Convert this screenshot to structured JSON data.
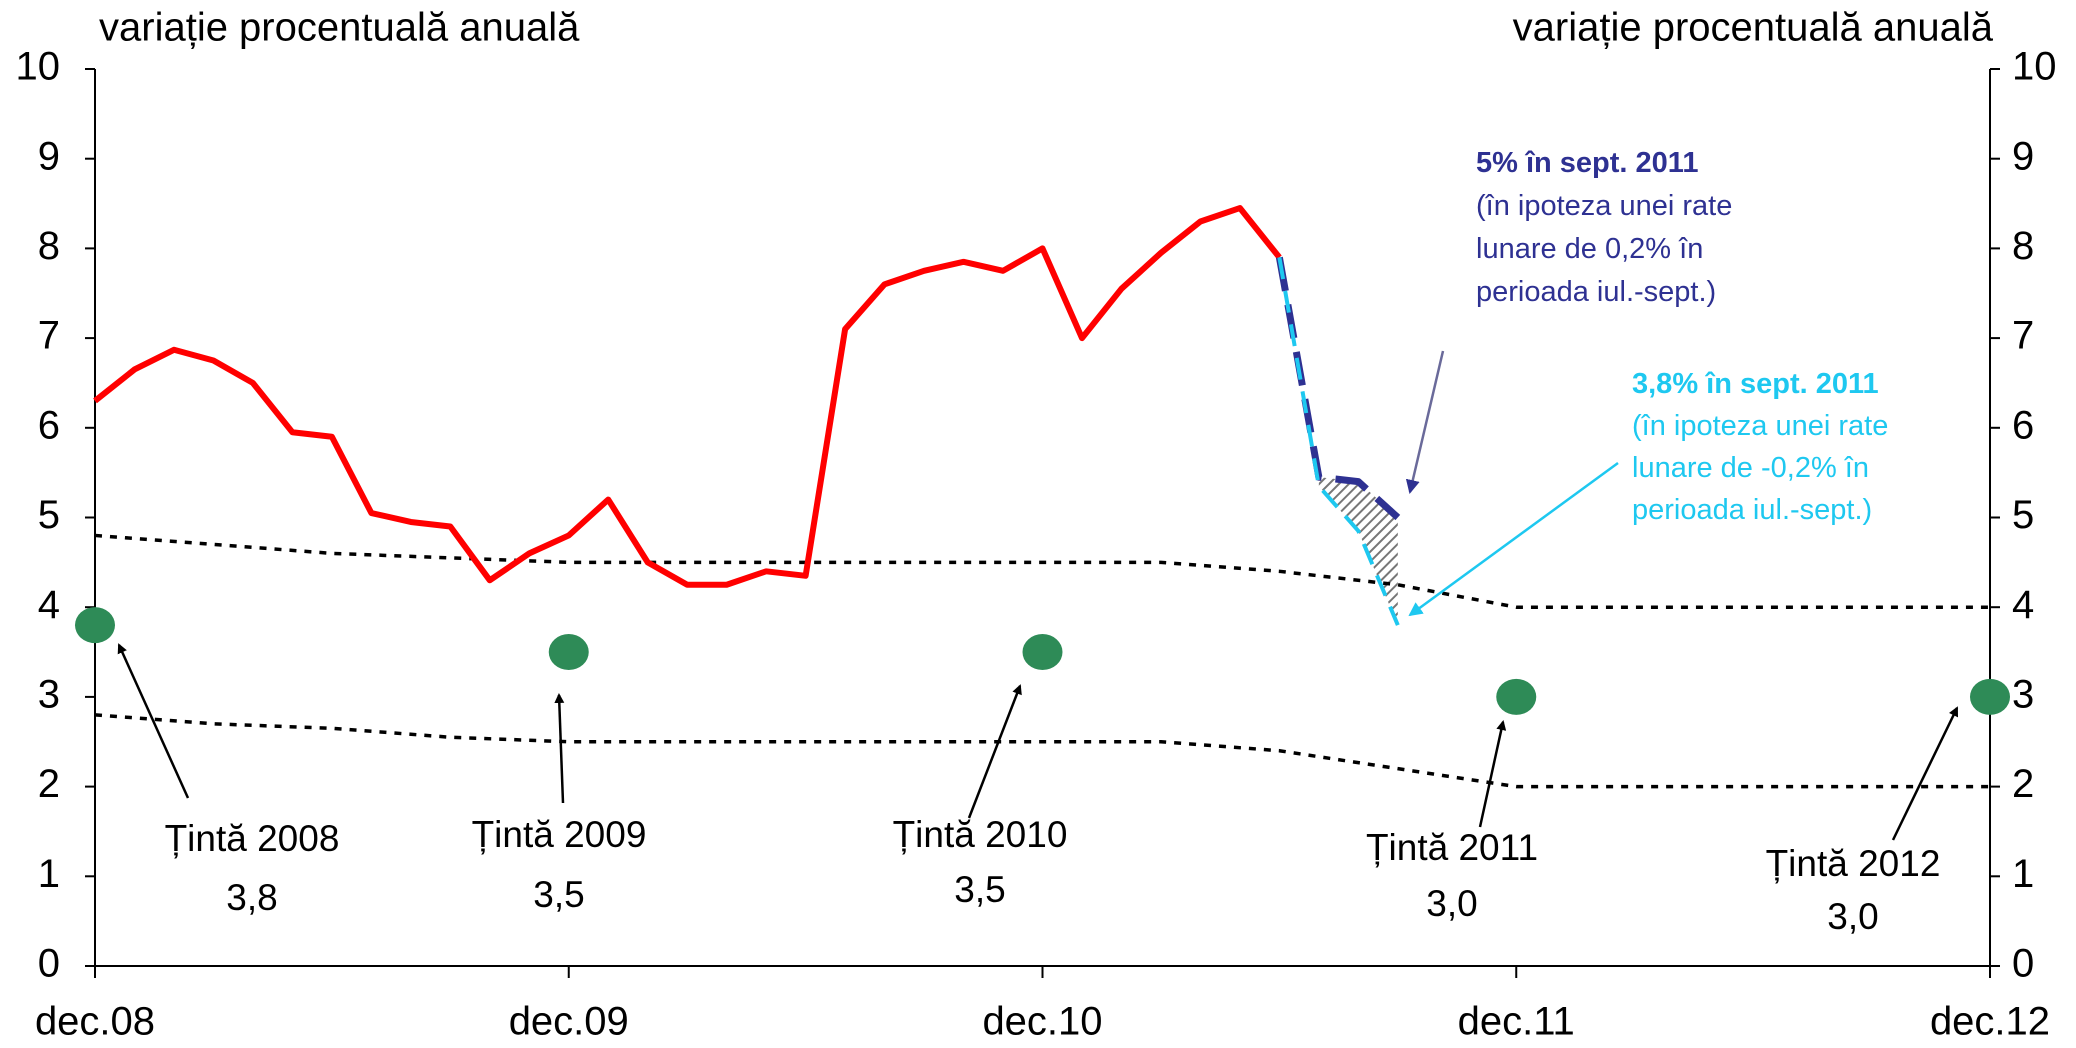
{
  "chart_data": {
    "type": "line",
    "ylabel": "variație procentuală anuală",
    "y2label": "variație procentuală anuală",
    "xlim": [
      0,
      48
    ],
    "xticks": [
      {
        "value": 0,
        "label": "dec.08"
      },
      {
        "value": 12,
        "label": "dec.09"
      },
      {
        "value": 24,
        "label": "dec.10"
      },
      {
        "value": 36,
        "label": "dec.11"
      },
      {
        "value": 48,
        "label": "dec.12"
      }
    ],
    "ylim": [
      0,
      10
    ],
    "yticks": [
      0,
      1,
      2,
      3,
      4,
      5,
      6,
      7,
      8,
      9,
      10
    ],
    "y2lim": [
      0,
      10
    ],
    "y2ticks": [
      0,
      1,
      2,
      3,
      4,
      5,
      6,
      7,
      8,
      9,
      10
    ],
    "series": [
      {
        "color": "#ff0000",
        "style": "solid",
        "x": [
          0,
          1,
          2,
          3,
          4,
          5,
          6,
          7,
          8,
          9,
          10,
          11,
          12,
          13,
          14,
          15,
          16,
          17,
          18,
          19,
          20,
          21,
          22,
          23,
          24,
          25,
          26,
          27,
          28,
          29,
          30
        ],
        "values": [
          6.3,
          6.65,
          6.87,
          6.75,
          6.5,
          5.95,
          5.9,
          5.05,
          4.95,
          4.9,
          4.3,
          4.6,
          4.8,
          5.2,
          4.5,
          4.25,
          4.25,
          4.4,
          4.35,
          7.1,
          7.6,
          7.75,
          7.85,
          7.75,
          8.0,
          7.0,
          7.55,
          7.95,
          8.3,
          8.45,
          7.9
        ]
      },
      {
        "color": "#2e3192",
        "style": "longdash",
        "x": [
          30,
          31,
          32,
          33
        ],
        "values": [
          7.9,
          5.45,
          5.4,
          5.0
        ]
      },
      {
        "color": "#1ec8f0",
        "style": "dash",
        "x": [
          30,
          31,
          32,
          33
        ],
        "values": [
          7.9,
          5.35,
          4.85,
          3.8
        ]
      },
      {
        "color": "#000000",
        "style": "dotted",
        "x": [
          0,
          3,
          6,
          9,
          12,
          15,
          18,
          21,
          24,
          27,
          30,
          33,
          36,
          39,
          42,
          45,
          48
        ],
        "values": [
          4.8,
          4.7,
          4.6,
          4.55,
          4.5,
          4.5,
          4.5,
          4.5,
          4.5,
          4.5,
          4.4,
          4.25,
          4.0,
          4.0,
          4.0,
          4.0,
          4.0
        ]
      },
      {
        "color": "#000000",
        "style": "dotted",
        "x": [
          0,
          3,
          6,
          9,
          12,
          15,
          18,
          21,
          24,
          27,
          30,
          33,
          36,
          39,
          42,
          45,
          48
        ],
        "values": [
          2.8,
          2.7,
          2.65,
          2.55,
          2.5,
          2.5,
          2.5,
          2.5,
          2.5,
          2.5,
          2.4,
          2.2,
          2.0,
          2.0,
          2.0,
          2.0,
          2.0
        ]
      }
    ],
    "targets": {
      "color": "#2e8b57",
      "x": [
        0,
        12,
        24,
        36,
        48
      ],
      "values": [
        3.8,
        3.5,
        3.5,
        3.0,
        3.0
      ],
      "value_labels": [
        "3,8",
        "3,5",
        "3,5",
        "3,0",
        "3,0"
      ],
      "labels": [
        "Țintă 2008",
        "Țintă 2009",
        "Țintă 2010",
        "Țintă 2011",
        "Țintă 2012"
      ]
    },
    "annotations": [
      {
        "color": "#2e3192",
        "lines": [
          "5% în sept. 2011",
          "(în ipoteza unei rate",
          "lunare de 0,2% în",
          "perioada iul.-sept.)"
        ]
      },
      {
        "color": "#1ec8f0",
        "lines": [
          "3,8% în sept. 2011",
          "(în ipoteza unei rate",
          "lunare de -0,2% în",
          "perioada iul.-sept.)"
        ]
      }
    ]
  }
}
